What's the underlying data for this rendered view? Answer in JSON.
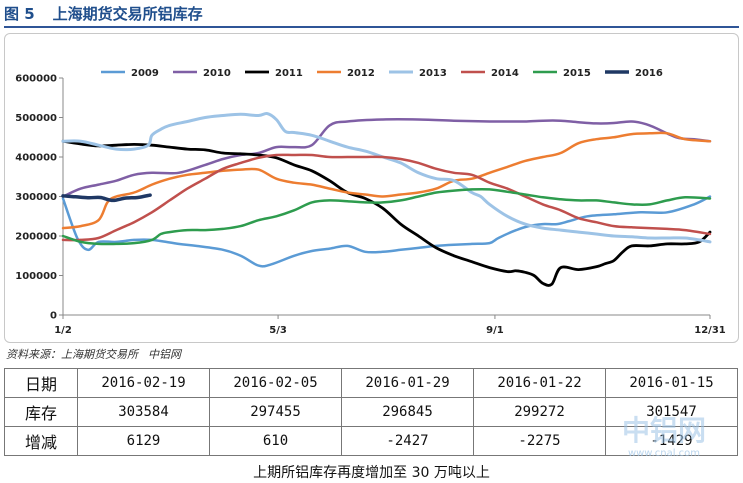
{
  "header": {
    "figure_label": "图 5",
    "title": "上海期货交易所铝库存"
  },
  "chart_data": {
    "type": "line",
    "title": "",
    "xlabel": "",
    "ylabel": "",
    "ylim": [
      0,
      600000
    ],
    "y_ticks": [
      "0",
      "100000",
      "200000",
      "300000",
      "400000",
      "500000",
      "600000"
    ],
    "x_ticks": [
      "1/2",
      "5/3",
      "9/1",
      "12/31"
    ],
    "x_tick_days": [
      0,
      121,
      243,
      364
    ],
    "xlim_days": [
      0,
      364
    ],
    "grid": false,
    "legend_position": "top",
    "series": [
      {
        "name": "2009",
        "color": "#5b9bd5",
        "width": 2.5,
        "x": [
          0,
          8,
          14,
          20,
          30,
          40,
          50,
          65,
          75,
          90,
          100,
          110,
          117,
          130,
          140,
          150,
          160,
          170,
          180,
          190,
          200,
          210,
          220,
          230,
          240,
          245,
          255,
          262,
          270,
          278,
          285,
          295,
          310,
          325,
          340,
          355,
          364
        ],
        "y": [
          295000,
          195000,
          165000,
          185000,
          185000,
          190000,
          190000,
          180000,
          175000,
          165000,
          150000,
          125000,
          128000,
          150000,
          162000,
          168000,
          175000,
          160000,
          160000,
          165000,
          170000,
          175000,
          178000,
          180000,
          182000,
          195000,
          215000,
          225000,
          230000,
          230000,
          238000,
          250000,
          255000,
          260000,
          260000,
          280000,
          300000
        ]
      },
      {
        "name": "2010",
        "color": "#7f5fa5",
        "width": 2.5,
        "x": [
          0,
          10,
          20,
          30,
          40,
          50,
          65,
          80,
          90,
          100,
          110,
          120,
          130,
          140,
          150,
          160,
          180,
          200,
          220,
          240,
          250,
          260,
          270,
          280,
          290,
          300,
          310,
          320,
          330,
          345,
          355,
          364
        ],
        "y": [
          300000,
          320000,
          330000,
          340000,
          355000,
          360000,
          360000,
          380000,
          395000,
          405000,
          410000,
          425000,
          425000,
          430000,
          480000,
          490000,
          495000,
          495000,
          492000,
          490000,
          490000,
          490000,
          492000,
          492000,
          488000,
          485000,
          486000,
          490000,
          480000,
          450000,
          445000,
          440000
        ]
      },
      {
        "name": "2011",
        "color": "#000000",
        "width": 2.8,
        "x": [
          0,
          10,
          20,
          30,
          40,
          50,
          60,
          70,
          80,
          90,
          100,
          110,
          120,
          130,
          140,
          150,
          160,
          170,
          180,
          190,
          200,
          210,
          220,
          230,
          240,
          250,
          255,
          260,
          265,
          270,
          275,
          280,
          290,
          300,
          305,
          310,
          315,
          320,
          330,
          340,
          350,
          358,
          364
        ],
        "y": [
          440000,
          433000,
          428000,
          430000,
          432000,
          430000,
          425000,
          420000,
          418000,
          410000,
          408000,
          405000,
          398000,
          380000,
          365000,
          340000,
          310000,
          295000,
          270000,
          230000,
          200000,
          170000,
          150000,
          135000,
          120000,
          110000,
          112000,
          108000,
          100000,
          80000,
          78000,
          120000,
          115000,
          122000,
          130000,
          138000,
          160000,
          175000,
          175000,
          180000,
          180000,
          185000,
          210000
        ]
      },
      {
        "name": "2012",
        "color": "#ed7d31",
        "width": 2.5,
        "x": [
          0,
          10,
          20,
          25,
          30,
          40,
          50,
          60,
          70,
          80,
          90,
          100,
          110,
          120,
          130,
          140,
          150,
          160,
          170,
          180,
          190,
          200,
          210,
          220,
          230,
          240,
          250,
          260,
          270,
          280,
          290,
          300,
          310,
          320,
          330,
          340,
          350,
          364
        ],
        "y": [
          220000,
          225000,
          240000,
          285000,
          300000,
          310000,
          330000,
          345000,
          355000,
          360000,
          365000,
          368000,
          368000,
          345000,
          335000,
          330000,
          320000,
          310000,
          305000,
          300000,
          305000,
          310000,
          320000,
          340000,
          345000,
          360000,
          375000,
          390000,
          400000,
          410000,
          435000,
          445000,
          450000,
          458000,
          460000,
          460000,
          445000,
          440000
        ]
      },
      {
        "name": "2013",
        "color": "#9dc3e6",
        "width": 3,
        "x": [
          0,
          10,
          20,
          30,
          40,
          48,
          50,
          55,
          60,
          70,
          80,
          90,
          100,
          110,
          115,
          120,
          125,
          130,
          140,
          150,
          160,
          170,
          180,
          190,
          200,
          210,
          220,
          230,
          235,
          240,
          250,
          260,
          270,
          280,
          290,
          300,
          310,
          320,
          330,
          340,
          350,
          358,
          364
        ],
        "y": [
          440000,
          440000,
          430000,
          420000,
          420000,
          430000,
          455000,
          470000,
          480000,
          490000,
          500000,
          505000,
          508000,
          505000,
          510000,
          495000,
          465000,
          462000,
          455000,
          440000,
          425000,
          415000,
          400000,
          385000,
          360000,
          345000,
          340000,
          310000,
          300000,
          280000,
          250000,
          230000,
          220000,
          215000,
          210000,
          205000,
          200000,
          198000,
          195000,
          195000,
          195000,
          190000,
          185000
        ]
      },
      {
        "name": "2014",
        "color": "#c0504d",
        "width": 2.5,
        "x": [
          0,
          10,
          20,
          30,
          40,
          50,
          60,
          70,
          80,
          90,
          100,
          110,
          120,
          130,
          140,
          150,
          160,
          170,
          180,
          190,
          200,
          210,
          220,
          230,
          240,
          250,
          260,
          270,
          280,
          290,
          300,
          310,
          320,
          330,
          340,
          350,
          364
        ],
        "y": [
          190000,
          190000,
          195000,
          215000,
          235000,
          260000,
          290000,
          320000,
          345000,
          370000,
          385000,
          398000,
          405000,
          405000,
          405000,
          400000,
          400000,
          400000,
          400000,
          395000,
          385000,
          370000,
          360000,
          355000,
          335000,
          320000,
          300000,
          280000,
          265000,
          245000,
          235000,
          225000,
          222000,
          220000,
          218000,
          215000,
          205000
        ]
      },
      {
        "name": "2015",
        "color": "#2e9c4e",
        "width": 2.5,
        "x": [
          0,
          10,
          20,
          30,
          40,
          50,
          55,
          60,
          70,
          80,
          90,
          100,
          110,
          120,
          130,
          140,
          150,
          160,
          170,
          180,
          190,
          200,
          210,
          220,
          230,
          240,
          250,
          260,
          270,
          280,
          290,
          300,
          310,
          320,
          330,
          340,
          350,
          364
        ],
        "y": [
          200000,
          185000,
          180000,
          180000,
          182000,
          190000,
          205000,
          210000,
          215000,
          215000,
          218000,
          225000,
          240000,
          250000,
          265000,
          285000,
          290000,
          288000,
          285000,
          285000,
          290000,
          300000,
          310000,
          315000,
          318000,
          318000,
          312000,
          305000,
          298000,
          293000,
          290000,
          290000,
          285000,
          280000,
          280000,
          290000,
          298000,
          295000
        ]
      },
      {
        "name": "2016",
        "color": "#1f3864",
        "width": 3.5,
        "x": [
          0,
          7,
          14,
          21,
          28,
          35,
          42,
          49
        ],
        "y": [
          301547,
          299272,
          296845,
          297455,
          290000,
          296000,
          297455,
          303584
        ]
      }
    ]
  },
  "source": {
    "label": "资料来源：上海期货交易所",
    "site": "中铝网"
  },
  "table": {
    "row_labels": [
      "日期",
      "库存",
      "增减"
    ],
    "columns": [
      {
        "date": "2016-02-19",
        "stock": "303584",
        "change": "6129"
      },
      {
        "date": "2016-02-05",
        "stock": "297455",
        "change": "610"
      },
      {
        "date": "2016-01-29",
        "stock": "296845",
        "change": "-2427"
      },
      {
        "date": "2016-01-22",
        "stock": "299272",
        "change": "-2275"
      },
      {
        "date": "2016-01-15",
        "stock": "301547",
        "change": "-1429"
      }
    ]
  },
  "watermark": {
    "text": "中铝网",
    "url_text": "www.cnal.com"
  },
  "caption": "上期所铝库存再度增加至 30 万吨以上"
}
